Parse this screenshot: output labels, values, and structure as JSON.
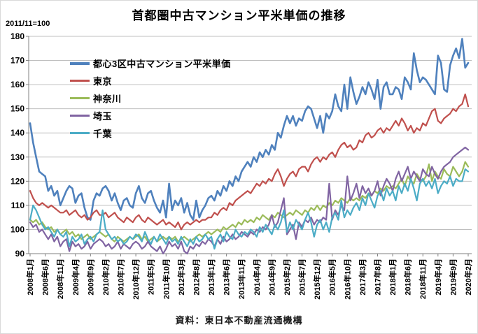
{
  "chart_data": {
    "type": "line",
    "title": "首都圏中古マンション平米単価の推移",
    "index_note": "2011/11=100",
    "source": "資料：東日本不動産流通機構",
    "ylim": [
      90,
      180
    ],
    "y_ticks": [
      90,
      100,
      110,
      120,
      130,
      140,
      150,
      160,
      170,
      180
    ],
    "x_start": "2008年1月",
    "x_end": "2020年2月",
    "months_total": 146,
    "x_tick_interval_months": 5,
    "x_tick_labels": [
      "2008年1月",
      "2008年6月",
      "2008年11月",
      "2009年4月",
      "2009年9月",
      "2010年2月",
      "2010年7月",
      "2010年12月",
      "2011年5月",
      "2011年10月",
      "2012年3月",
      "2012年8月",
      "2013年1月",
      "2013年6月",
      "2013年11月",
      "2014年4月",
      "2014年9月",
      "2015年2月",
      "2015年7月",
      "2015年12月",
      "2016年5月",
      "2016年10月",
      "2017年3月",
      "2017年8月",
      "2018年1月",
      "2018年6月",
      "2018年11月",
      "2019年4月",
      "2019年9月",
      "2020年2月"
    ],
    "grid": "horizontal",
    "legend_position": "inside-top-left",
    "colors": {
      "axis": "#808080",
      "gridline": "#bfbfbf",
      "text": "#000000"
    },
    "series": [
      {
        "name": "都心3区中古マンション平米単価",
        "color": "#4F81BD",
        "values": [
          144,
          136,
          130,
          124,
          123,
          122,
          116,
          118,
          114,
          116,
          110,
          113,
          116,
          118,
          117,
          111,
          114,
          115,
          109,
          105,
          104,
          112,
          115,
          114,
          117,
          118,
          116,
          112,
          115,
          111,
          108,
          112,
          113,
          110,
          109,
          115,
          118,
          113,
          111,
          115,
          116,
          112,
          109,
          107,
          112,
          105,
          119,
          108,
          112,
          110,
          113,
          107,
          111,
          106,
          104,
          112,
          105,
          108,
          110,
          113,
          114,
          112,
          116,
          114,
          118,
          116,
          120,
          118,
          122,
          120,
          124,
          126,
          128,
          126,
          130,
          128,
          132,
          130,
          133,
          131,
          135,
          133,
          140,
          138,
          143,
          147,
          144,
          147,
          143,
          146,
          145,
          149,
          151,
          150,
          146,
          142,
          147,
          140,
          148,
          146,
          149,
          156,
          151,
          149,
          160,
          150,
          163,
          157,
          152,
          155,
          159,
          156,
          161,
          158,
          154,
          162,
          150,
          159,
          161,
          156,
          156,
          159,
          158,
          154,
          163,
          161,
          158,
          173,
          166,
          161,
          163,
          162,
          160,
          158,
          156,
          172,
          169,
          158,
          157,
          168,
          172,
          175,
          171,
          179,
          167,
          169
        ]
      },
      {
        "name": "東京",
        "color": "#C0504D",
        "values": [
          116,
          113,
          111,
          110,
          111,
          110,
          109,
          110,
          109,
          108,
          107,
          107,
          108,
          106,
          107,
          108,
          106,
          105,
          106,
          104,
          105,
          107,
          108,
          106,
          106,
          107,
          105,
          106,
          107,
          105,
          104,
          103,
          105,
          104,
          103,
          105,
          106,
          104,
          103,
          105,
          104,
          103,
          102,
          103,
          104,
          102,
          103,
          102,
          101,
          103,
          100,
          102,
          103,
          102,
          103,
          104,
          103,
          104,
          104,
          105,
          105,
          107,
          106,
          108,
          109,
          108,
          111,
          110,
          112,
          113,
          114,
          115,
          116,
          115,
          117,
          119,
          118,
          120,
          119,
          121,
          120,
          123,
          125,
          122,
          118,
          121,
          123,
          124,
          122,
          125,
          126,
          126,
          124,
          127,
          129,
          130,
          128,
          130,
          129,
          131,
          132,
          130,
          133,
          135,
          136,
          134,
          135,
          133,
          134,
          137,
          136,
          139,
          140,
          138,
          139,
          141,
          142,
          140,
          142,
          141,
          143,
          145,
          143,
          146,
          144,
          141,
          143,
          140,
          142,
          141,
          144,
          143,
          146,
          149,
          150,
          145,
          144,
          146,
          147,
          148,
          150,
          149,
          151,
          152,
          156,
          151
        ]
      },
      {
        "name": "神奈川",
        "color": "#9BBB59",
        "values": [
          104,
          103,
          104,
          102,
          103,
          101,
          100,
          101,
          99,
          100,
          98,
          99,
          100,
          98,
          99,
          97,
          98,
          96,
          97,
          98,
          96,
          97,
          98,
          99,
          98,
          97,
          98,
          96,
          95,
          97,
          96,
          95,
          96,
          97,
          96,
          97,
          98,
          96,
          97,
          95,
          96,
          97,
          95,
          96,
          97,
          96,
          97,
          96,
          97,
          95,
          96,
          97,
          96,
          95,
          96,
          97,
          98,
          97,
          98,
          99,
          98,
          99,
          100,
          99,
          101,
          100,
          101,
          102,
          101,
          103,
          102,
          104,
          103,
          104,
          103,
          105,
          104,
          106,
          105,
          104,
          106,
          105,
          107,
          106,
          105,
          106,
          107,
          106,
          108,
          107,
          106,
          108,
          107,
          109,
          108,
          110,
          108,
          110,
          109,
          111,
          110,
          112,
          111,
          113,
          112,
          111,
          113,
          112,
          113,
          112,
          114,
          113,
          115,
          114,
          116,
          115,
          117,
          116,
          118,
          117,
          118,
          117,
          119,
          121,
          118,
          122,
          120,
          119,
          123,
          121,
          120,
          122,
          127,
          120,
          124,
          122,
          121,
          125,
          123,
          122,
          126,
          124,
          122,
          124,
          128,
          126
        ]
      },
      {
        "name": "埼玉",
        "color": "#8064A2",
        "values": [
          103,
          101,
          102,
          99,
          100,
          98,
          96,
          98,
          95,
          97,
          93,
          95,
          96,
          91,
          95,
          93,
          94,
          92,
          93,
          95,
          92,
          94,
          95,
          96,
          95,
          93,
          94,
          92,
          93,
          95,
          92,
          94,
          93,
          92,
          94,
          95,
          94,
          92,
          93,
          95,
          93,
          92,
          91,
          93,
          90,
          92,
          95,
          93,
          94,
          92,
          95,
          91,
          90,
          93,
          92,
          94,
          93,
          95,
          94,
          96,
          95,
          93,
          96,
          94,
          97,
          95,
          96,
          98,
          96,
          97,
          99,
          98,
          97,
          99,
          98,
          100,
          99,
          101,
          100,
          102,
          106,
          101,
          103,
          108,
          113,
          98,
          100,
          102,
          96,
          103,
          101,
          104,
          103,
          105,
          102,
          104,
          103,
          105,
          104,
          119,
          104,
          108,
          106,
          110,
          108,
          122,
          112,
          115,
          119,
          113,
          118,
          115,
          117,
          114,
          116,
          120,
          114,
          118,
          121,
          119,
          116,
          121,
          124,
          120,
          123,
          126,
          121,
          124,
          122,
          120,
          125,
          123,
          122,
          126,
          123,
          121,
          124,
          126,
          127,
          128,
          130,
          131,
          132,
          133,
          134,
          133
        ]
      },
      {
        "name": "千葉",
        "color": "#4BACC6",
        "values": [
          104,
          110,
          108,
          105,
          102,
          100,
          101,
          99,
          97,
          100,
          98,
          97,
          99,
          93,
          97,
          95,
          96,
          98,
          94,
          96,
          97,
          95,
          98,
          99,
          108,
          100,
          98,
          96,
          97,
          95,
          96,
          94,
          95,
          97,
          96,
          98,
          97,
          95,
          99,
          96,
          94,
          97,
          95,
          98,
          96,
          94,
          97,
          95,
          96,
          94,
          97,
          95,
          93,
          96,
          94,
          97,
          95,
          96,
          98,
          96,
          97,
          92,
          96,
          98,
          95,
          99,
          97,
          96,
          100,
          98,
          97,
          99,
          98,
          100,
          99,
          97,
          101,
          99,
          102,
          100,
          98,
          102,
          100,
          103,
          108,
          99,
          103,
          100,
          104,
          102,
          100,
          104,
          107,
          103,
          97,
          102,
          104,
          100,
          103,
          99,
          105,
          107,
          104,
          112,
          105,
          108,
          106,
          109,
          111,
          108,
          113,
          110,
          115,
          112,
          109,
          114,
          116,
          112,
          117,
          114,
          116,
          112,
          118,
          115,
          119,
          116,
          121,
          117,
          112,
          119,
          121,
          118,
          120,
          117,
          121,
          115,
          118,
          120,
          119,
          122,
          118,
          121,
          120,
          120,
          125,
          124
        ]
      }
    ]
  }
}
